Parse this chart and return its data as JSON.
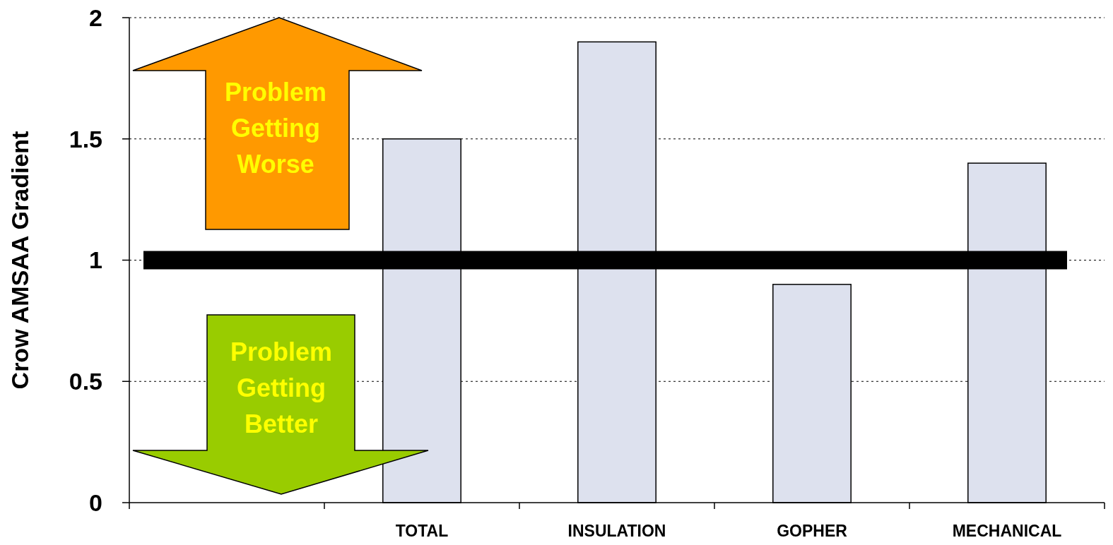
{
  "chart_data": {
    "type": "bar",
    "ylabel": "Crow AMSAA Gradient",
    "categories": [
      null,
      "TOTAL",
      "INSULATION",
      "GOPHER",
      "MECHANICAL"
    ],
    "values": [
      null,
      1.5,
      1.9,
      0.9,
      1.4
    ],
    "color": "#dde1ee",
    "ylim": [
      0,
      2
    ],
    "yticks": [
      0,
      0.5,
      1,
      1.5,
      2
    ],
    "grid": "y",
    "ref_lines": [
      {
        "axis": "y",
        "value": 1,
        "color": "#000000"
      }
    ],
    "annotations": [
      "Problem Getting Worse",
      "Problem Getting Better"
    ]
  }
}
